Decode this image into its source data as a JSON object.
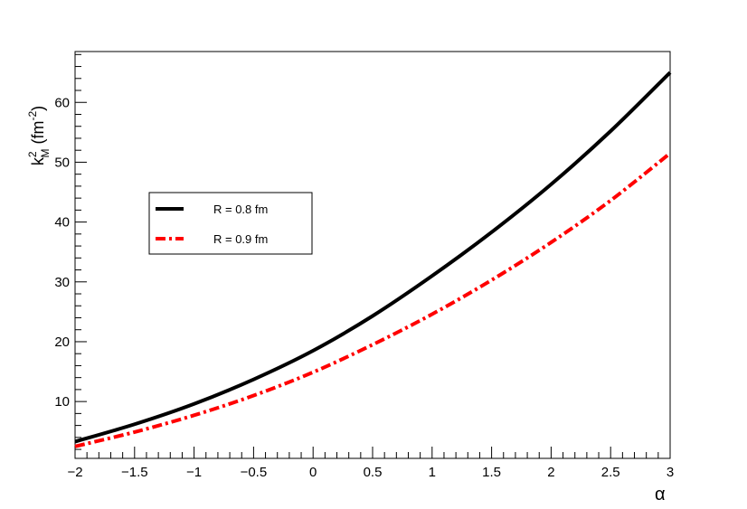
{
  "chart_data": {
    "type": "line",
    "xlabel": "α",
    "ylabel": {
      "base": "k",
      "sup": "2",
      "sub": "M",
      "unit_open": " (fm",
      "unit_sup": "-2",
      "unit_close": ")"
    },
    "xlim": [
      -2,
      3
    ],
    "ylim": [
      0.5,
      68.5
    ],
    "x_ticks": [
      -2,
      -1.5,
      -1,
      -0.5,
      0,
      0.5,
      1,
      1.5,
      2,
      2.5,
      3
    ],
    "x_tick_labels": [
      "−2",
      "−1.5",
      "−1",
      "−0.5",
      "0",
      "0.5",
      "1",
      "1.5",
      "2",
      "2.5",
      "3"
    ],
    "y_ticks": [
      10,
      20,
      30,
      40,
      50,
      60
    ],
    "y_tick_labels": [
      "10",
      "20",
      "30",
      "40",
      "50",
      "60"
    ],
    "grid": false,
    "legend_position": "left-middle",
    "series": [
      {
        "name": "R = 0.8 fm",
        "color": "#000000",
        "style": "solid",
        "x": [
          -2,
          -1.5,
          -1,
          -0.5,
          0,
          0.5,
          1,
          1.5,
          2,
          2.5,
          3
        ],
        "y": [
          3.3,
          6.2,
          9.6,
          13.7,
          18.5,
          24.3,
          31.0,
          38.3,
          46.3,
          55.2,
          65.0
        ]
      },
      {
        "name": "R = 0.9 fm",
        "color": "#ff0000",
        "style": "dashdot",
        "x": [
          -2,
          -1.5,
          -1,
          -0.5,
          0,
          0.5,
          1,
          1.5,
          2,
          2.5,
          3
        ],
        "y": [
          2.5,
          4.9,
          7.7,
          11.0,
          14.9,
          19.5,
          24.6,
          30.3,
          36.6,
          43.6,
          51.5
        ]
      }
    ]
  }
}
